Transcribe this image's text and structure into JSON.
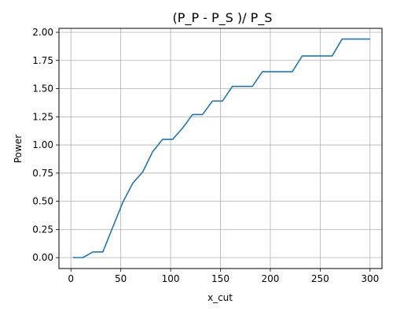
{
  "chart_data": {
    "type": "line",
    "title": "(P_P - P_S )/ P_S",
    "xlabel": "x_cut",
    "ylabel": "Power",
    "xlim": [
      -12,
      312
    ],
    "ylim": [
      -0.097,
      2.035
    ],
    "xticks": [
      0,
      50,
      100,
      150,
      200,
      250,
      300
    ],
    "yticks": [
      0.0,
      0.25,
      0.5,
      0.75,
      1.0,
      1.25,
      1.5,
      1.75,
      2.0
    ],
    "xtick_labels": [
      "0",
      "50",
      "100",
      "150",
      "200",
      "250",
      "300"
    ],
    "ytick_labels": [
      "0.00",
      "0.25",
      "0.50",
      "0.75",
      "1.00",
      "1.25",
      "1.50",
      "1.75",
      "2.00"
    ],
    "grid": true,
    "series": [
      {
        "color": "#1f77b4",
        "x": [
          2,
          12,
          22,
          32,
          42,
          52,
          62,
          72,
          82,
          92,
          102,
          112,
          122,
          132,
          142,
          152,
          162,
          172,
          182,
          192,
          202,
          212,
          222,
          232,
          242,
          252,
          262,
          272,
          282,
          292,
          300
        ],
        "y": [
          0.0,
          0.0,
          0.05,
          0.05,
          0.27,
          0.49,
          0.66,
          0.76,
          0.94,
          1.05,
          1.05,
          1.15,
          1.27,
          1.27,
          1.39,
          1.39,
          1.52,
          1.52,
          1.52,
          1.65,
          1.65,
          1.65,
          1.65,
          1.79,
          1.79,
          1.79,
          1.79,
          1.94,
          1.94,
          1.94,
          1.94
        ]
      }
    ]
  }
}
